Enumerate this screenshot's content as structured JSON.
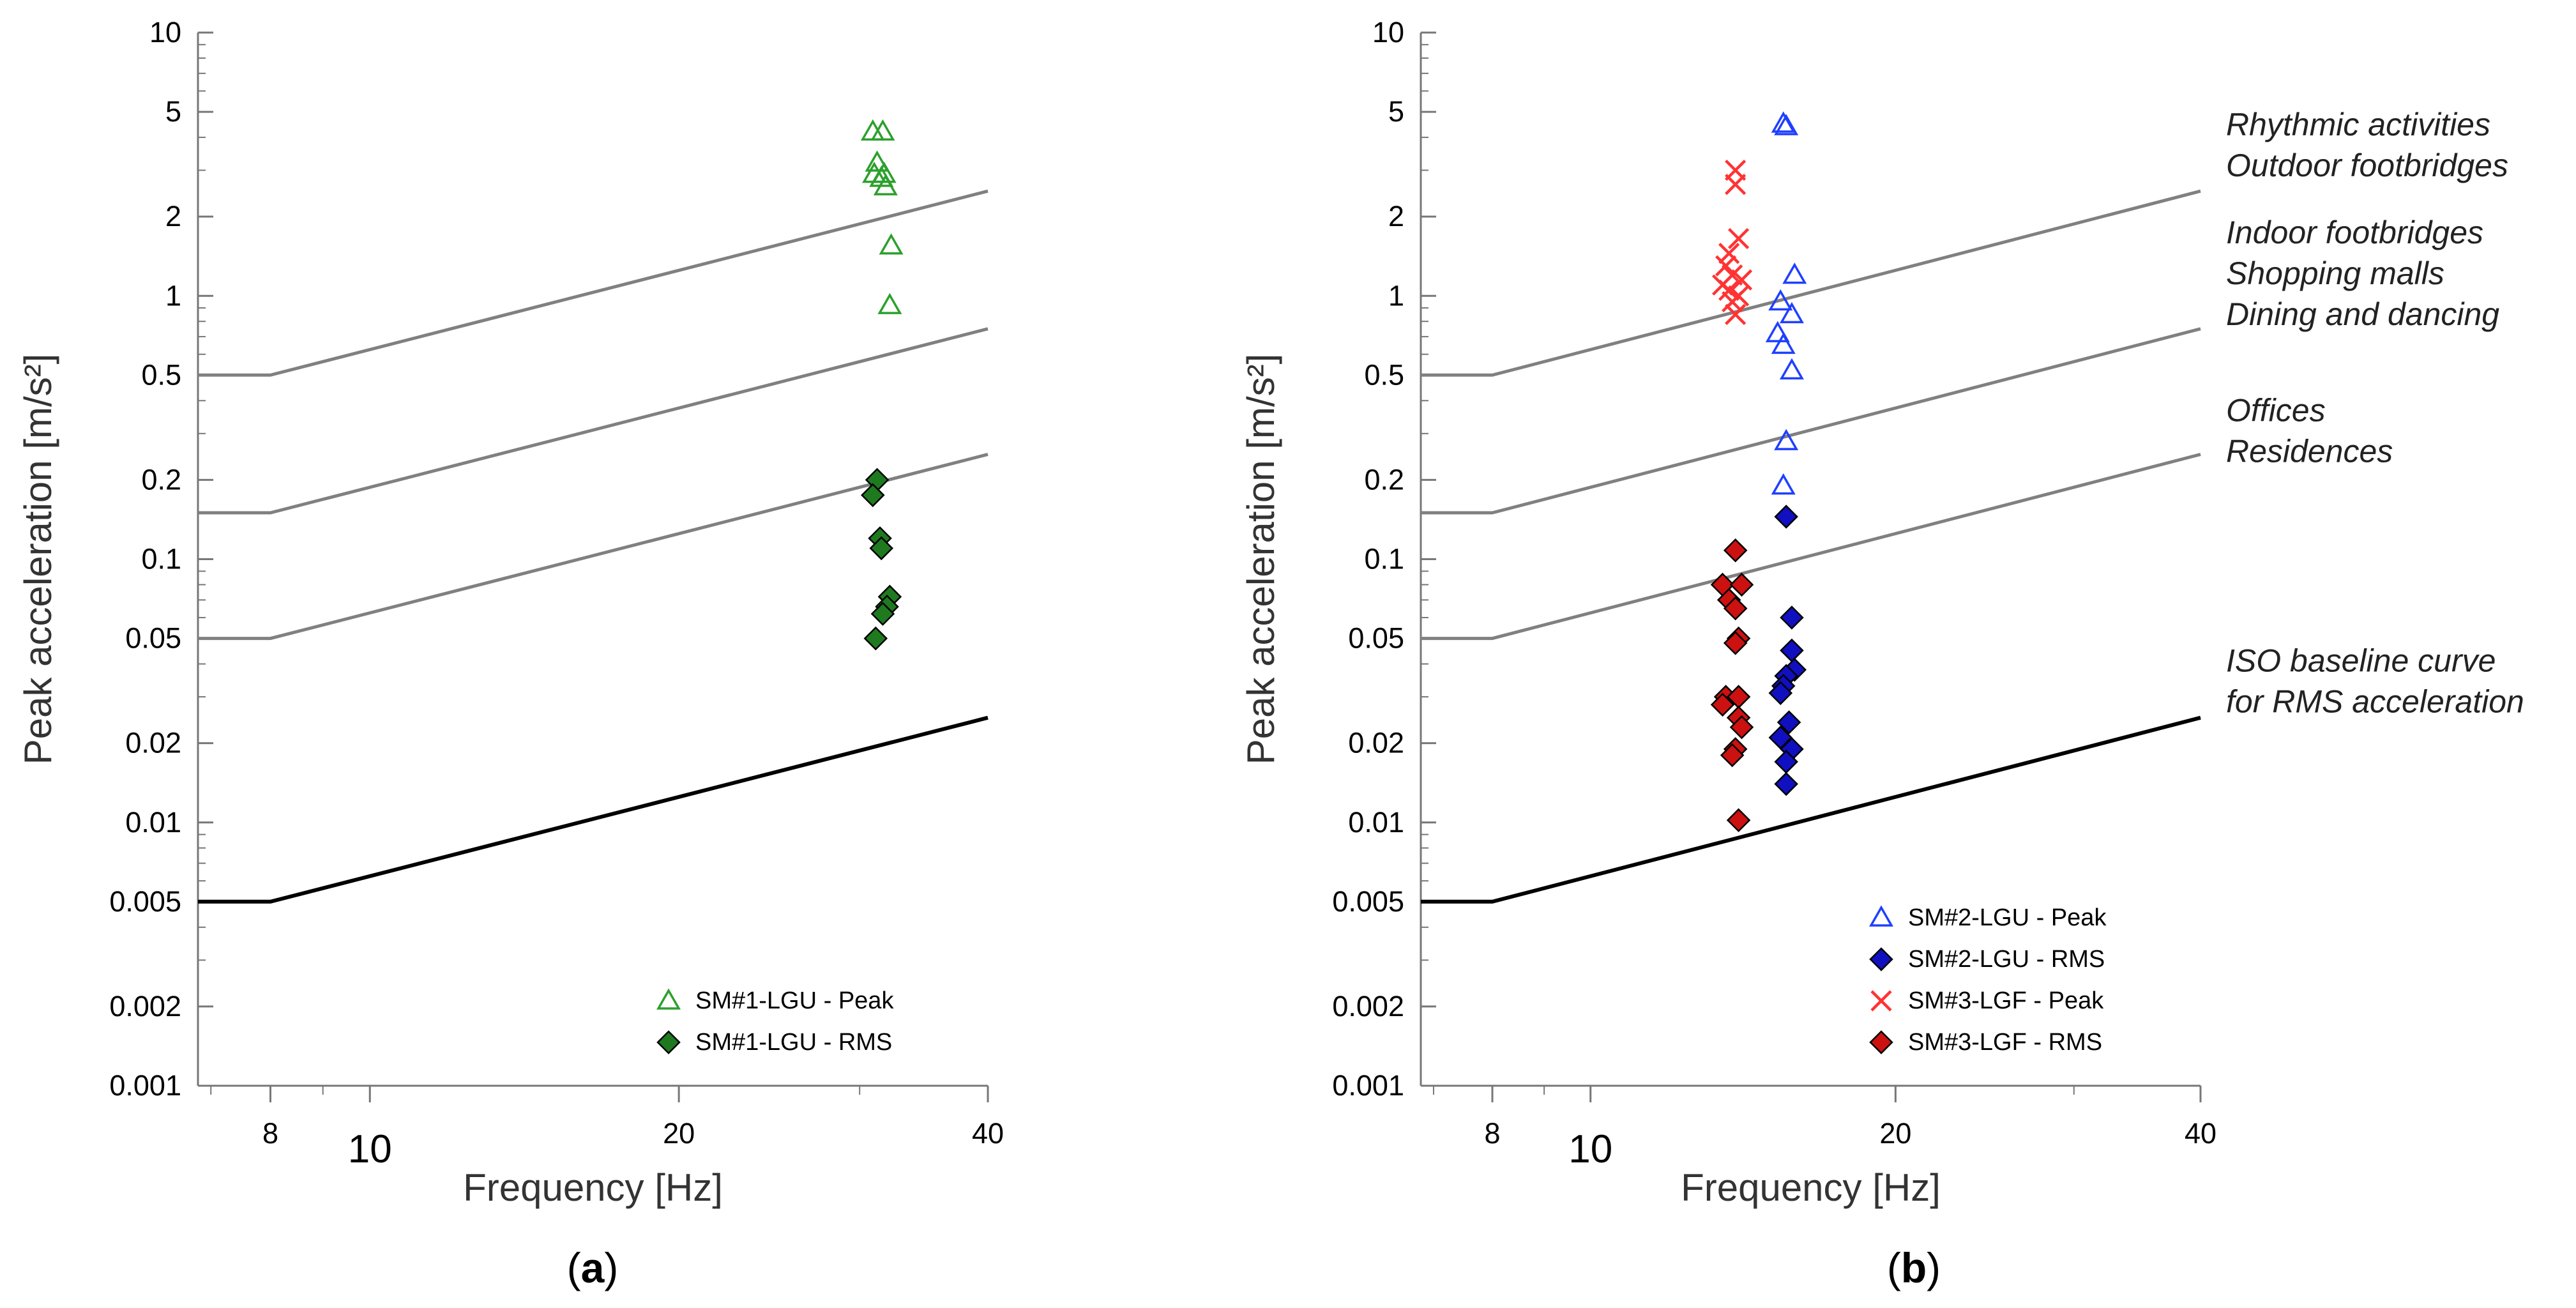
{
  "chart_data": [
    {
      "type": "scatter",
      "panel_label": "a",
      "xlabel": "Frequency  [Hz]",
      "ylabel": "Peak acceleration  [m/s²]",
      "x_scale": "log",
      "y_scale": "log",
      "xlim": [
        6.8,
        40
      ],
      "ylim": [
        0.001,
        10
      ],
      "x_ticks": [
        8,
        10,
        20,
        40
      ],
      "x_tick_labels": [
        "8",
        "10",
        "20",
        "40"
      ],
      "y_ticks": [
        10,
        5,
        2,
        1,
        0.5,
        0.2,
        0.1,
        0.05,
        0.02,
        0.01,
        0.005,
        0.002,
        0.001
      ],
      "y_tick_labels": [
        "10",
        "5",
        "2",
        "1",
        "0.5",
        "0.2",
        "0.1",
        "0.05",
        "0.02",
        "0.01",
        "0.005",
        "0.002",
        "0.001"
      ],
      "grid": false,
      "legend_position": "bottom-right",
      "curves": [
        {
          "color": "#808080",
          "points": [
            [
              6.8,
              0.5
            ],
            [
              8,
              0.5
            ],
            [
              40,
              2.5
            ]
          ]
        },
        {
          "color": "#808080",
          "points": [
            [
              6.8,
              0.15
            ],
            [
              8,
              0.15
            ],
            [
              40,
              0.75
            ]
          ]
        },
        {
          "color": "#808080",
          "points": [
            [
              6.8,
              0.05
            ],
            [
              8,
              0.05
            ],
            [
              40,
              0.25
            ]
          ]
        },
        {
          "color": "#000000",
          "points": [
            [
              6.8,
              0.005
            ],
            [
              8,
              0.005
            ],
            [
              40,
              0.025
            ]
          ]
        }
      ],
      "series": [
        {
          "name": "SM#1-LGU - Peak",
          "marker": "triangle-open",
          "color": "#2ca02c",
          "points": [
            [
              30.9,
              4.2
            ],
            [
              31.6,
              4.2
            ],
            [
              31.2,
              3.2
            ],
            [
              31.0,
              2.9
            ],
            [
              31.7,
              2.9
            ],
            [
              31.5,
              2.8
            ],
            [
              31.8,
              2.6
            ],
            [
              32.2,
              1.55
            ],
            [
              32.1,
              0.92
            ]
          ]
        },
        {
          "name": "SM#1-LGU - RMS",
          "marker": "diamond",
          "color": "#1f7a1f",
          "points": [
            [
              31.2,
              0.2
            ],
            [
              30.9,
              0.175
            ],
            [
              31.4,
              0.12
            ],
            [
              31.5,
              0.11
            ],
            [
              32.1,
              0.072
            ],
            [
              31.9,
              0.066
            ],
            [
              31.6,
              0.062
            ],
            [
              31.1,
              0.05
            ]
          ]
        }
      ]
    },
    {
      "type": "scatter",
      "panel_label": "b",
      "xlabel": "Frequency  [Hz]",
      "ylabel": "Peak acceleration  [m/s²]",
      "x_scale": "log",
      "y_scale": "log",
      "xlim": [
        6.8,
        40
      ],
      "ylim": [
        0.001,
        10
      ],
      "x_ticks": [
        8,
        10,
        20,
        40
      ],
      "x_tick_labels": [
        "8",
        "10",
        "20",
        "40"
      ],
      "y_ticks": [
        10,
        5,
        2,
        1,
        0.5,
        0.2,
        0.1,
        0.05,
        0.02,
        0.01,
        0.005,
        0.002,
        0.001
      ],
      "y_tick_labels": [
        "10",
        "5",
        "2",
        "1",
        "0.5",
        "0.2",
        "0.1",
        "0.05",
        "0.02",
        "0.01",
        "0.005",
        "0.002",
        "0.001"
      ],
      "grid": false,
      "legend_position": "bottom-right",
      "curves": [
        {
          "color": "#808080",
          "points": [
            [
              6.8,
              0.5
            ],
            [
              8,
              0.5
            ],
            [
              40,
              2.5
            ]
          ]
        },
        {
          "color": "#808080",
          "points": [
            [
              6.8,
              0.15
            ],
            [
              8,
              0.15
            ],
            [
              40,
              0.75
            ]
          ]
        },
        {
          "color": "#808080",
          "points": [
            [
              6.8,
              0.05
            ],
            [
              8,
              0.05
            ],
            [
              40,
              0.25
            ]
          ]
        },
        {
          "color": "#000000",
          "points": [
            [
              6.8,
              0.005
            ],
            [
              8,
              0.005
            ],
            [
              40,
              0.025
            ]
          ]
        }
      ],
      "curve_annotations": [
        {
          "lines": [
            "Rhythmic activities",
            "Outdoor footbridges"
          ],
          "y": 2.5
        },
        {
          "lines": [
            "Indoor footbridges",
            "Shopping malls",
            "Dining and dancing"
          ],
          "y": 0.75
        },
        {
          "lines": [
            "Offices",
            "Residences"
          ],
          "y": 0.25
        },
        {
          "lines": [
            "ISO baseline curve",
            "for RMS acceleration"
          ],
          "y": 0.025
        }
      ],
      "series": [
        {
          "name": "SM#2-LGU - Peak",
          "marker": "triangle-open",
          "color": "#1f3fff",
          "points": [
            [
              15.5,
              4.5
            ],
            [
              15.6,
              4.4
            ],
            [
              15.9,
              1.2
            ],
            [
              15.4,
              0.95
            ],
            [
              15.8,
              0.85
            ],
            [
              15.3,
              0.72
            ],
            [
              15.5,
              0.65
            ],
            [
              15.8,
              0.52
            ],
            [
              15.6,
              0.28
            ],
            [
              15.5,
              0.19
            ]
          ]
        },
        {
          "name": "SM#2-LGU - RMS",
          "marker": "diamond",
          "color": "#1010c0",
          "points": [
            [
              15.6,
              0.145
            ],
            [
              15.8,
              0.06
            ],
            [
              15.8,
              0.045
            ],
            [
              15.9,
              0.038
            ],
            [
              15.6,
              0.036
            ],
            [
              15.5,
              0.033
            ],
            [
              15.4,
              0.031
            ],
            [
              15.7,
              0.024
            ],
            [
              15.4,
              0.021
            ],
            [
              15.8,
              0.019
            ],
            [
              15.6,
              0.017
            ],
            [
              15.6,
              0.014
            ]
          ]
        },
        {
          "name": "SM#3-LGF - Peak",
          "marker": "cross",
          "color": "#ff3333",
          "points": [
            [
              13.9,
              3.0
            ],
            [
              13.9,
              2.65
            ],
            [
              13.7,
              1.45
            ],
            [
              14.0,
              1.65
            ],
            [
              13.6,
              1.3
            ],
            [
              13.8,
              1.2
            ],
            [
              14.1,
              1.15
            ],
            [
              13.5,
              1.1
            ],
            [
              13.7,
              1.05
            ],
            [
              14.0,
              1.0
            ],
            [
              13.8,
              0.95
            ],
            [
              13.9,
              0.85
            ]
          ]
        },
        {
          "name": "SM#3-LGF - RMS",
          "marker": "diamond",
          "color": "#cc1111",
          "points": [
            [
              13.9,
              0.108
            ],
            [
              13.5,
              0.08
            ],
            [
              14.1,
              0.08
            ],
            [
              13.7,
              0.07
            ],
            [
              13.9,
              0.065
            ],
            [
              14.0,
              0.05
            ],
            [
              13.9,
              0.048
            ],
            [
              13.6,
              0.03
            ],
            [
              14.0,
              0.03
            ],
            [
              13.5,
              0.028
            ],
            [
              14.0,
              0.025
            ],
            [
              14.1,
              0.023
            ],
            [
              13.9,
              0.019
            ],
            [
              13.8,
              0.018
            ],
            [
              14.0,
              0.0102
            ]
          ]
        }
      ]
    }
  ]
}
